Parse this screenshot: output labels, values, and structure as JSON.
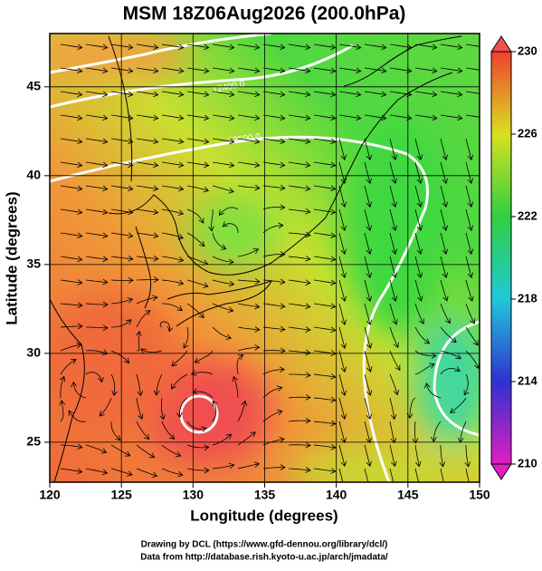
{
  "title": "MSM 18Z06Aug2026 (200.0hPa)",
  "x_axis": {
    "label": "Longitude (degrees)",
    "lim": [
      120,
      150
    ],
    "ticks": [
      120,
      125,
      130,
      135,
      140,
      145,
      150
    ]
  },
  "y_axis": {
    "label": "Latitude  (degrees)",
    "lim": [
      22.75,
      48
    ],
    "ticks": [
      25,
      30,
      35,
      40,
      45
    ]
  },
  "colorbar": {
    "lim": [
      210,
      230
    ],
    "ticks": [
      210,
      214,
      218,
      222,
      226,
      230
    ]
  },
  "contour_labels": [
    "12400.0",
    "12500.0"
  ],
  "credits": [
    "Drawing by DCL (https://www.gfd-dennou.org/library/dcl/)",
    "Data from http://database.rish.kyoto-u.ac.jp/arch/jmadata/"
  ]
}
